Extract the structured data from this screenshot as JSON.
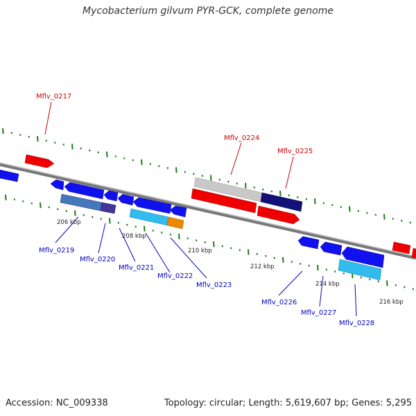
{
  "title": "Mycobacterium gilvum PYR-GCK, complete genome",
  "footer": {
    "accession": "Accession: NC_009338",
    "summary": "Topology: circular; Length: 5,619,607 bp; Genes: 5,295"
  },
  "colors": {
    "forward_gene": "#ff0000",
    "reverse_gene": "#0000ee",
    "backbone": "#888888",
    "tick": "#1a7a1a",
    "forward_label": "#cc0000",
    "reverse_label": "#0000bb"
  },
  "kbp_labels": [
    "206 kbp",
    "208 kbp",
    "210 kbp",
    "212 kbp",
    "214 kbp",
    "216 kbp"
  ],
  "forward_labels": [
    "Mflv_0217",
    "Mflv_0224",
    "Mflv_0225"
  ],
  "reverse_labels": [
    "Mflv_0219",
    "Mflv_0220",
    "Mflv_0221",
    "Mflv_0222",
    "Mflv_0223",
    "Mflv_0226",
    "Mflv_0227",
    "Mflv_0228"
  ]
}
